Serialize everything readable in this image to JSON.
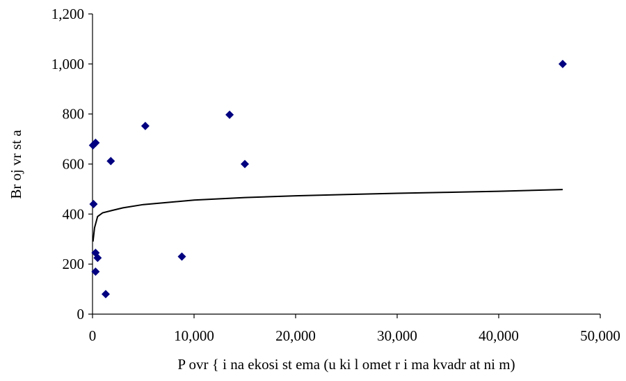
{
  "chart_data": {
    "type": "scatter",
    "title": "",
    "xlabel": "P ovr { i na ekosi st ema (u ki l omet r i ma kvadr at ni m)",
    "ylabel": "Br oj vr st a",
    "xlim": [
      0,
      50000
    ],
    "ylim": [
      0,
      1200
    ],
    "x_ticks": [
      0,
      10000,
      20000,
      30000,
      40000,
      50000
    ],
    "x_tick_labels": [
      "0",
      "10,000",
      "20,000",
      "30,000",
      "40,000",
      "50,000"
    ],
    "y_ticks": [
      0,
      200,
      400,
      600,
      800,
      1000,
      1200
    ],
    "y_tick_labels": [
      "0",
      "200",
      "400",
      "600",
      "800",
      "1,000",
      "1,200"
    ],
    "grid": false,
    "legend": "none",
    "marker_color": "#000080",
    "marker": "diamond",
    "points": [
      {
        "x": 50,
        "y": 675
      },
      {
        "x": 300,
        "y": 685
      },
      {
        "x": 100,
        "y": 440
      },
      {
        "x": 300,
        "y": 245
      },
      {
        "x": 500,
        "y": 225
      },
      {
        "x": 300,
        "y": 170
      },
      {
        "x": 1300,
        "y": 80
      },
      {
        "x": 1800,
        "y": 612
      },
      {
        "x": 5200,
        "y": 752
      },
      {
        "x": 8800,
        "y": 230
      },
      {
        "x": 13500,
        "y": 797
      },
      {
        "x": 15000,
        "y": 600
      },
      {
        "x": 46300,
        "y": 1000
      }
    ],
    "trendline": {
      "type": "logarithmic",
      "color": "#000000",
      "x": [
        50,
        200,
        500,
        1000,
        2000,
        3000,
        5000,
        7500,
        10000,
        15000,
        20000,
        25000,
        30000,
        35000,
        40000,
        46300
      ],
      "y": [
        290,
        345,
        390,
        405,
        415,
        425,
        438,
        447,
        456,
        466,
        473,
        478,
        483,
        487,
        491,
        498
      ]
    }
  }
}
